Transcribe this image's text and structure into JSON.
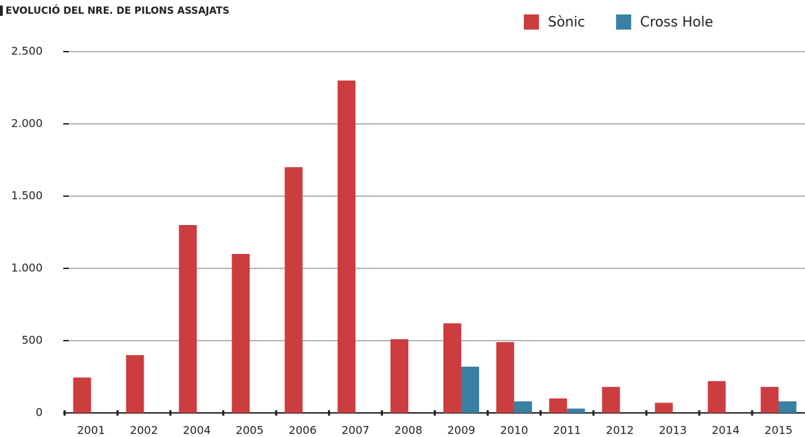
{
  "chart_data": {
    "type": "bar",
    "title": "EVOLUCIÓ DEL NRE. DE PILONS ASSAJATS",
    "categories": [
      "2001",
      "2002",
      "2004",
      "2005",
      "2006",
      "2007",
      "2008",
      "2009",
      "2010",
      "2011",
      "2012",
      "2013",
      "2014",
      "2015"
    ],
    "series": [
      {
        "name": "Sònic",
        "color": "#cc3d3f",
        "values": [
          245,
          400,
          1300,
          1100,
          1700,
          2300,
          510,
          620,
          490,
          100,
          180,
          70,
          220,
          180
        ]
      },
      {
        "name": "Cross Hole",
        "color": "#3a80a3",
        "values": [
          null,
          null,
          null,
          null,
          null,
          null,
          null,
          320,
          80,
          30,
          null,
          null,
          null,
          80
        ]
      }
    ],
    "ylim": [
      0,
      2500
    ],
    "yticks": [
      0,
      500,
      {
        "value": 1000,
        "label": "1.000"
      },
      {
        "value": 1500,
        "label": "1.500"
      },
      {
        "value": 2000,
        "label": "2.000"
      },
      {
        "value": 2500,
        "label": "2.500"
      }
    ],
    "grid": true,
    "legend": "top-right"
  }
}
